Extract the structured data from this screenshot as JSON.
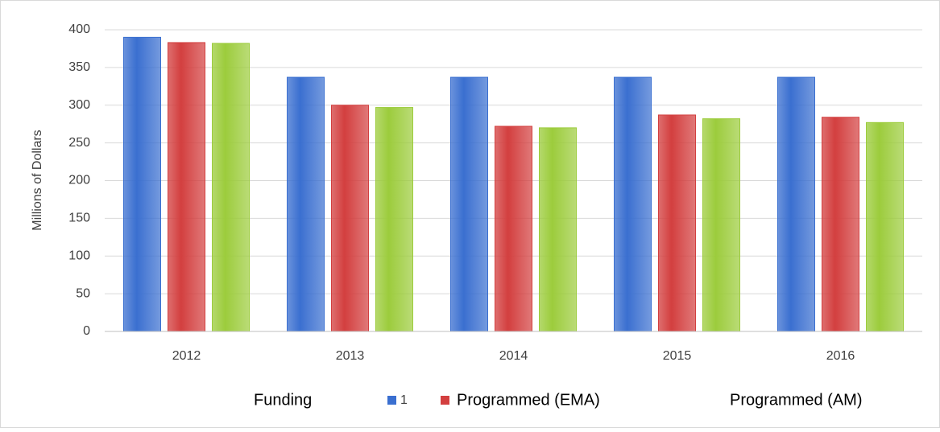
{
  "chart_data": {
    "type": "bar",
    "y_label": "Millions of Dollars",
    "categories": [
      "2012",
      "2013",
      "2014",
      "2015",
      "2016"
    ],
    "series": [
      {
        "name": "1",
        "color": "#3a6fd0",
        "values": [
          390,
          337,
          337,
          337,
          337
        ]
      },
      {
        "name": "Programmed (EMA)",
        "color": "#d33f3f",
        "values": [
          383,
          300,
          272,
          287,
          284
        ]
      },
      {
        "name": "Programmed (AM)",
        "color": "#9ccc3c",
        "values": [
          382,
          297,
          270,
          282,
          277
        ]
      }
    ],
    "legend_text": "Funding",
    "ylim": [
      0,
      400
    ],
    "yticks": [
      0,
      50,
      100,
      150,
      200,
      250,
      300,
      350,
      400
    ],
    "grid": true
  }
}
